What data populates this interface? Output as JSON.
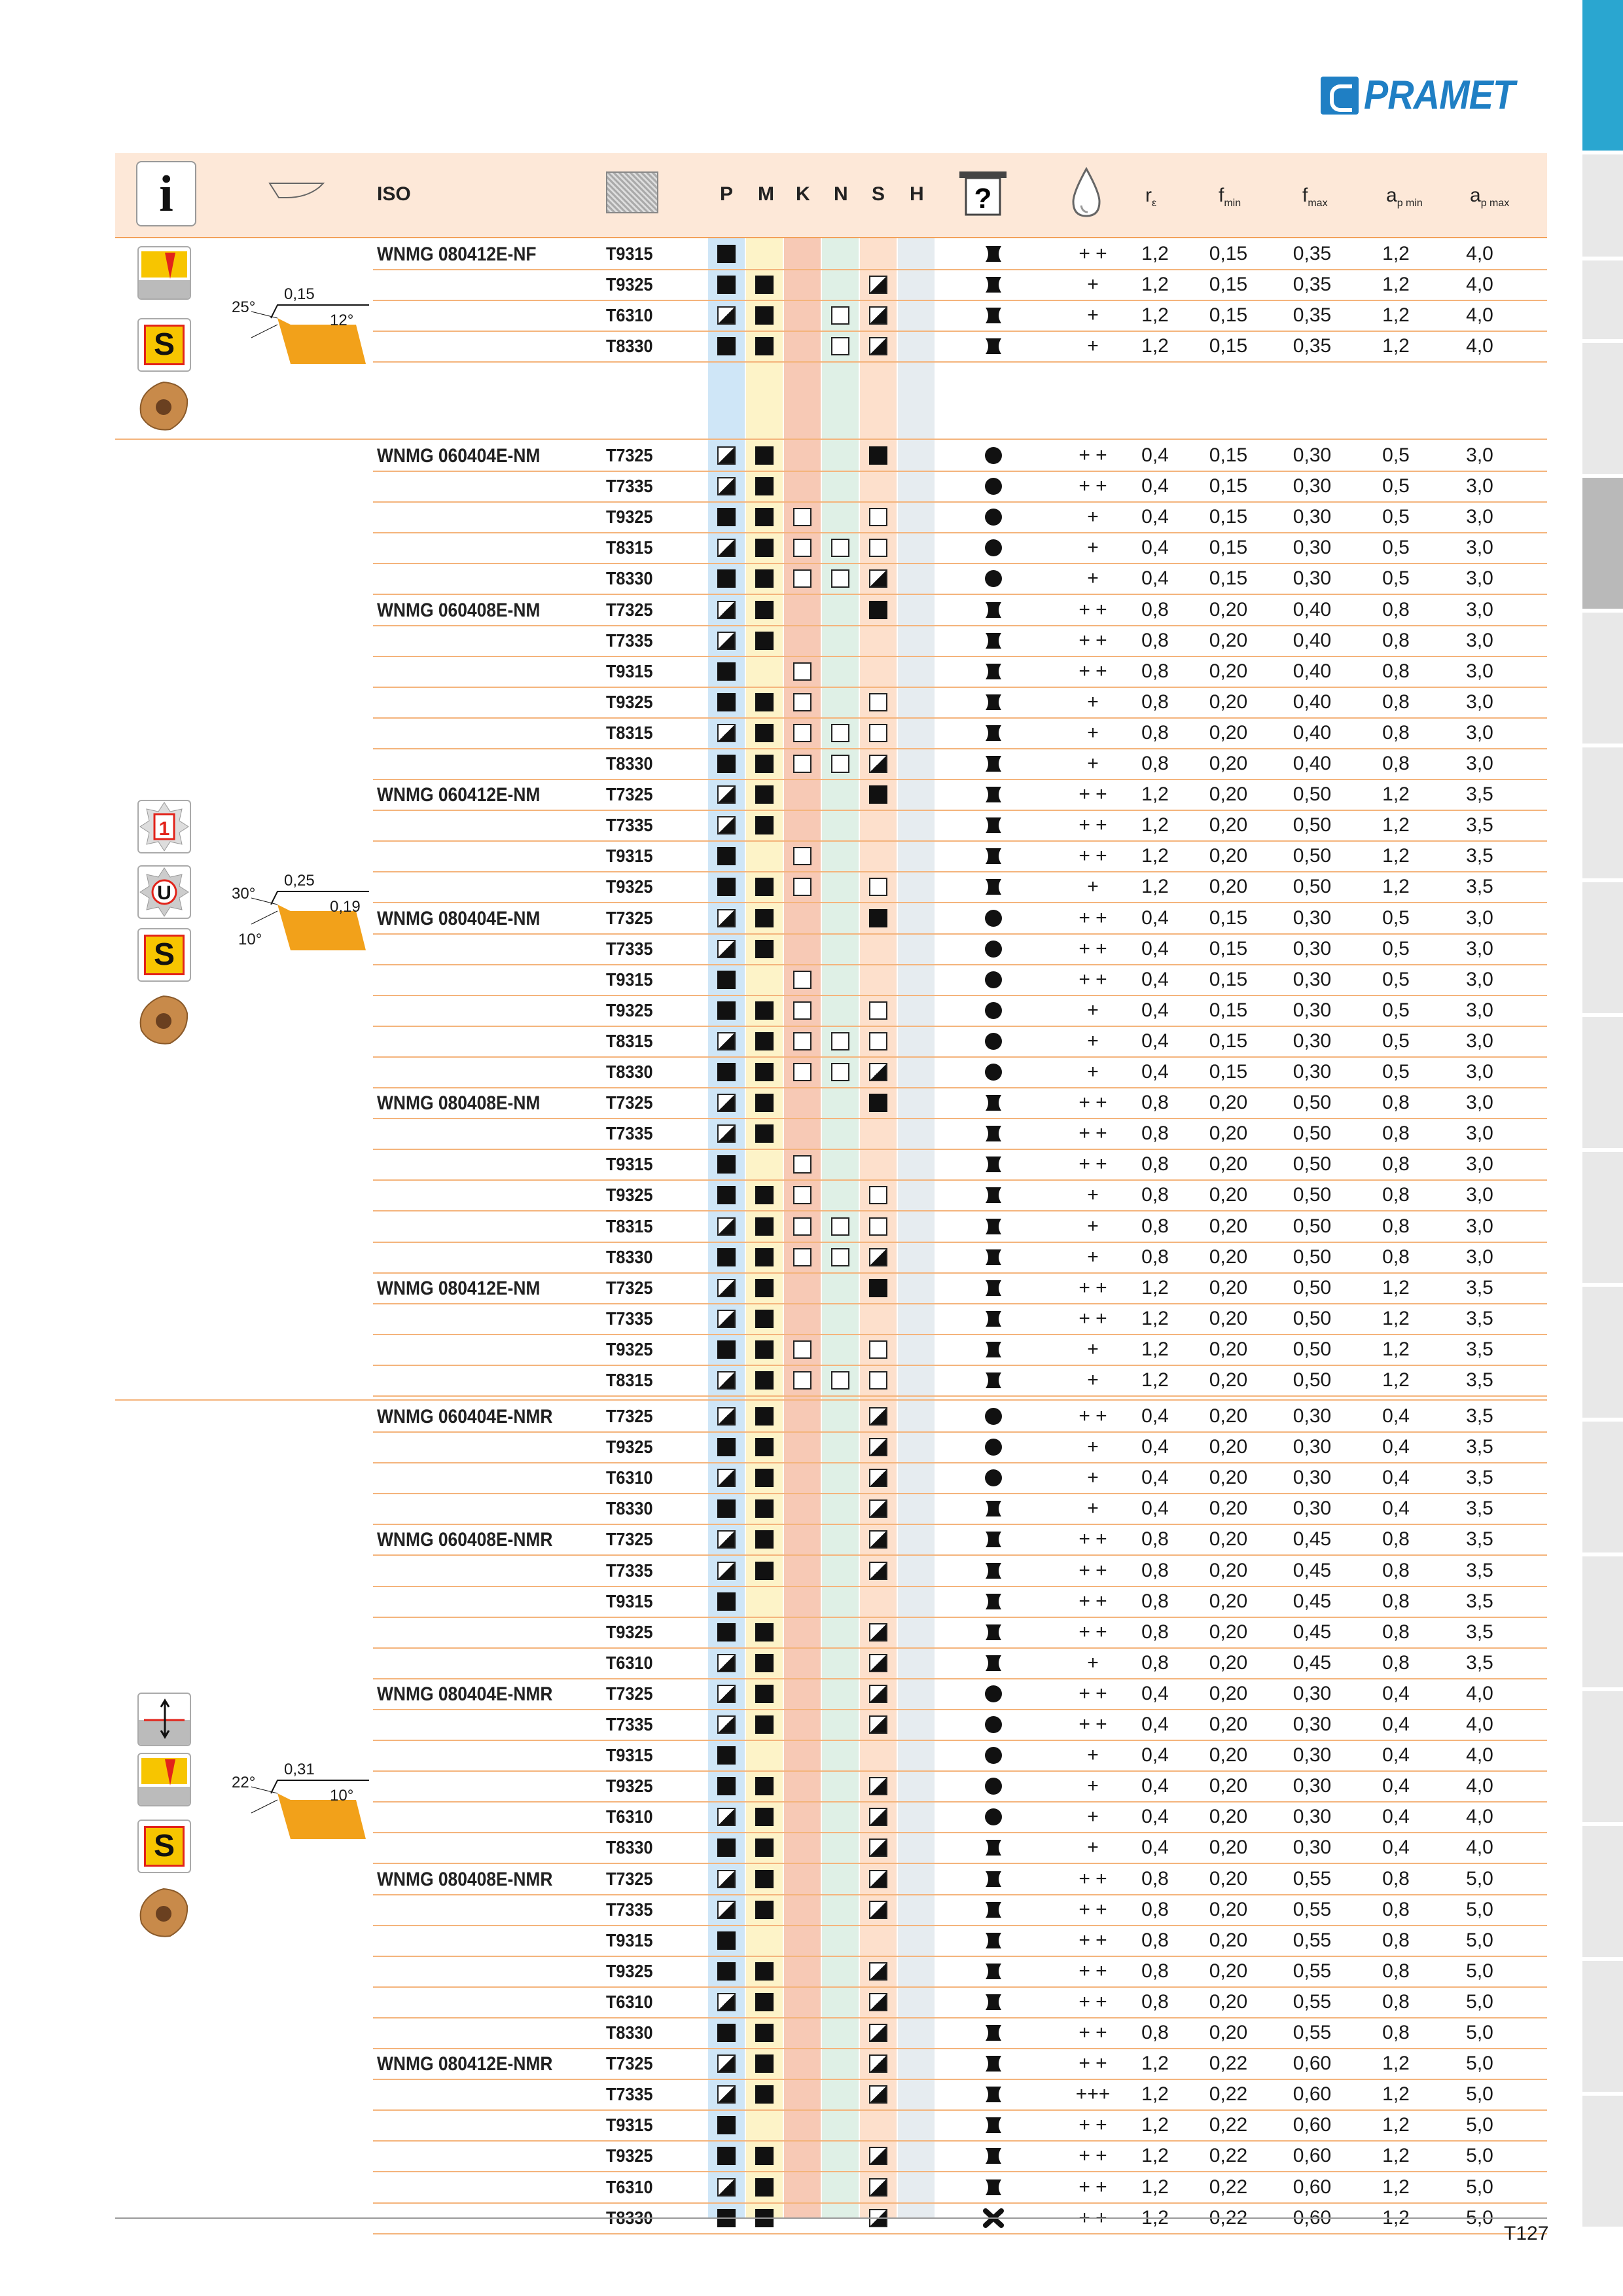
{
  "brand": {
    "name": "PRAMET"
  },
  "header": {
    "iso": "ISO",
    "materials": [
      "P",
      "M",
      "K",
      "N",
      "S",
      "H"
    ],
    "params": [
      "r",
      "f",
      "f",
      "a",
      "a"
    ],
    "params_sub": [
      "ε",
      "min",
      "max",
      "p min",
      "p max"
    ],
    "info_label": "i"
  },
  "colors": {
    "P": "#cfe6f7",
    "M": "#fdf3c8",
    "K": "#f7c9b5",
    "N": "#dff0e6",
    "S": "#fde0cc",
    "H": "#e6ecf0",
    "header_bg": "#fde8d8",
    "rule": "#f4b47c",
    "brand": "#1f7fc4"
  },
  "sections": [
    {
      "geometry_labels": [
        "25°",
        "0,15",
        "12°"
      ],
      "badges": [
        "wear-icon",
        "S"
      ]
    },
    {
      "geometry_labels": [
        "30°",
        "0,25",
        "0,19",
        "10°"
      ],
      "badges": [
        "1",
        "U",
        "S"
      ]
    },
    {
      "geometry_labels": [
        "22°",
        "0,31",
        "10°"
      ],
      "badges": [
        "depth-icon",
        "wear-icon",
        "S"
      ]
    }
  ],
  "groups": [
    {
      "iso": "WNMG 080412E-NF",
      "rows": [
        [
          "T9315",
          "f",
          "",
          "",
          "",
          "",
          "",
          "b",
          "+ +",
          "1,2",
          "0,15",
          "0,35",
          "1,2",
          "4,0"
        ],
        [
          "T9325",
          "f",
          "f",
          "",
          "",
          "h",
          "",
          "b",
          "+",
          "1,2",
          "0,15",
          "0,35",
          "1,2",
          "4,0"
        ],
        [
          "T6310",
          "h",
          "f",
          "",
          "e",
          "h",
          "",
          "b",
          "+",
          "1,2",
          "0,15",
          "0,35",
          "1,2",
          "4,0"
        ],
        [
          "T8330",
          "f",
          "f",
          "",
          "e",
          "h",
          "",
          "b",
          "+",
          "1,2",
          "0,15",
          "0,35",
          "1,2",
          "4,0"
        ]
      ]
    },
    {
      "iso": "WNMG 060404E-NM",
      "rows": [
        [
          "T7325",
          "h",
          "f",
          "",
          "",
          "f",
          "",
          "c",
          "+ +",
          "0,4",
          "0,15",
          "0,30",
          "0,5",
          "3,0"
        ],
        [
          "T7335",
          "h",
          "f",
          "",
          "",
          "",
          "",
          "c",
          "+ +",
          "0,4",
          "0,15",
          "0,30",
          "0,5",
          "3,0"
        ],
        [
          "T9325",
          "f",
          "f",
          "e",
          "",
          "e",
          "",
          "c",
          "+",
          "0,4",
          "0,15",
          "0,30",
          "0,5",
          "3,0"
        ],
        [
          "T8315",
          "h",
          "f",
          "e",
          "e",
          "e",
          "",
          "c",
          "+",
          "0,4",
          "0,15",
          "0,30",
          "0,5",
          "3,0"
        ],
        [
          "T8330",
          "f",
          "f",
          "e",
          "e",
          "h",
          "",
          "c",
          "+",
          "0,4",
          "0,15",
          "0,30",
          "0,5",
          "3,0"
        ]
      ]
    },
    {
      "iso": "WNMG 060408E-NM",
      "rows": [
        [
          "T7325",
          "h",
          "f",
          "",
          "",
          "f",
          "",
          "b",
          "+ +",
          "0,8",
          "0,20",
          "0,40",
          "0,8",
          "3,0"
        ],
        [
          "T7335",
          "h",
          "f",
          "",
          "",
          "",
          "",
          "b",
          "+ +",
          "0,8",
          "0,20",
          "0,40",
          "0,8",
          "3,0"
        ],
        [
          "T9315",
          "f",
          "",
          "e",
          "",
          "",
          "",
          "b",
          "+ +",
          "0,8",
          "0,20",
          "0,40",
          "0,8",
          "3,0"
        ],
        [
          "T9325",
          "f",
          "f",
          "e",
          "",
          "e",
          "",
          "b",
          "+",
          "0,8",
          "0,20",
          "0,40",
          "0,8",
          "3,0"
        ],
        [
          "T8315",
          "h",
          "f",
          "e",
          "e",
          "e",
          "",
          "b",
          "+",
          "0,8",
          "0,20",
          "0,40",
          "0,8",
          "3,0"
        ],
        [
          "T8330",
          "f",
          "f",
          "e",
          "e",
          "h",
          "",
          "b",
          "+",
          "0,8",
          "0,20",
          "0,40",
          "0,8",
          "3,0"
        ]
      ]
    },
    {
      "iso": "WNMG 060412E-NM",
      "rows": [
        [
          "T7325",
          "h",
          "f",
          "",
          "",
          "f",
          "",
          "b",
          "+ +",
          "1,2",
          "0,20",
          "0,50",
          "1,2",
          "3,5"
        ],
        [
          "T7335",
          "h",
          "f",
          "",
          "",
          "",
          "",
          "b",
          "+ +",
          "1,2",
          "0,20",
          "0,50",
          "1,2",
          "3,5"
        ],
        [
          "T9315",
          "f",
          "",
          "e",
          "",
          "",
          "",
          "b",
          "+ +",
          "1,2",
          "0,20",
          "0,50",
          "1,2",
          "3,5"
        ],
        [
          "T9325",
          "f",
          "f",
          "e",
          "",
          "e",
          "",
          "b",
          "+",
          "1,2",
          "0,20",
          "0,50",
          "1,2",
          "3,5"
        ]
      ]
    },
    {
      "iso": "WNMG 080404E-NM",
      "rows": [
        [
          "T7325",
          "h",
          "f",
          "",
          "",
          "f",
          "",
          "c",
          "+ +",
          "0,4",
          "0,15",
          "0,30",
          "0,5",
          "3,0"
        ],
        [
          "T7335",
          "h",
          "f",
          "",
          "",
          "",
          "",
          "c",
          "+ +",
          "0,4",
          "0,15",
          "0,30",
          "0,5",
          "3,0"
        ],
        [
          "T9315",
          "f",
          "",
          "e",
          "",
          "",
          "",
          "c",
          "+ +",
          "0,4",
          "0,15",
          "0,30",
          "0,5",
          "3,0"
        ],
        [
          "T9325",
          "f",
          "f",
          "e",
          "",
          "e",
          "",
          "c",
          "+",
          "0,4",
          "0,15",
          "0,30",
          "0,5",
          "3,0"
        ],
        [
          "T8315",
          "h",
          "f",
          "e",
          "e",
          "e",
          "",
          "c",
          "+",
          "0,4",
          "0,15",
          "0,30",
          "0,5",
          "3,0"
        ],
        [
          "T8330",
          "f",
          "f",
          "e",
          "e",
          "h",
          "",
          "c",
          "+",
          "0,4",
          "0,15",
          "0,30",
          "0,5",
          "3,0"
        ]
      ]
    },
    {
      "iso": "WNMG 080408E-NM",
      "rows": [
        [
          "T7325",
          "h",
          "f",
          "",
          "",
          "f",
          "",
          "b",
          "+ +",
          "0,8",
          "0,20",
          "0,50",
          "0,8",
          "3,0"
        ],
        [
          "T7335",
          "h",
          "f",
          "",
          "",
          "",
          "",
          "b",
          "+ +",
          "0,8",
          "0,20",
          "0,50",
          "0,8",
          "3,0"
        ],
        [
          "T9315",
          "f",
          "",
          "e",
          "",
          "",
          "",
          "b",
          "+ +",
          "0,8",
          "0,20",
          "0,50",
          "0,8",
          "3,0"
        ],
        [
          "T9325",
          "f",
          "f",
          "e",
          "",
          "e",
          "",
          "b",
          "+",
          "0,8",
          "0,20",
          "0,50",
          "0,8",
          "3,0"
        ],
        [
          "T8315",
          "h",
          "f",
          "e",
          "e",
          "e",
          "",
          "b",
          "+",
          "0,8",
          "0,20",
          "0,50",
          "0,8",
          "3,0"
        ],
        [
          "T8330",
          "f",
          "f",
          "e",
          "e",
          "h",
          "",
          "b",
          "+",
          "0,8",
          "0,20",
          "0,50",
          "0,8",
          "3,0"
        ]
      ]
    },
    {
      "iso": "WNMG 080412E-NM",
      "rows": [
        [
          "T7325",
          "h",
          "f",
          "",
          "",
          "f",
          "",
          "b",
          "+ +",
          "1,2",
          "0,20",
          "0,50",
          "1,2",
          "3,5"
        ],
        [
          "T7335",
          "h",
          "f",
          "",
          "",
          "",
          "",
          "b",
          "+ +",
          "1,2",
          "0,20",
          "0,50",
          "1,2",
          "3,5"
        ],
        [
          "T9325",
          "f",
          "f",
          "e",
          "",
          "e",
          "",
          "b",
          "+",
          "1,2",
          "0,20",
          "0,50",
          "1,2",
          "3,5"
        ],
        [
          "T8315",
          "h",
          "f",
          "e",
          "e",
          "e",
          "",
          "b",
          "+",
          "1,2",
          "0,20",
          "0,50",
          "1,2",
          "3,5"
        ]
      ]
    },
    {
      "iso": "WNMG 060404E-NMR",
      "rows": [
        [
          "T7325",
          "h",
          "f",
          "",
          "",
          "h",
          "",
          "c",
          "+ +",
          "0,4",
          "0,20",
          "0,30",
          "0,4",
          "3,5"
        ],
        [
          "T9325",
          "f",
          "f",
          "",
          "",
          "h",
          "",
          "c",
          "+",
          "0,4",
          "0,20",
          "0,30",
          "0,4",
          "3,5"
        ],
        [
          "T6310",
          "h",
          "f",
          "",
          "",
          "h",
          "",
          "c",
          "+",
          "0,4",
          "0,20",
          "0,30",
          "0,4",
          "3,5"
        ],
        [
          "T8330",
          "f",
          "f",
          "",
          "",
          "h",
          "",
          "b",
          "+",
          "0,4",
          "0,20",
          "0,30",
          "0,4",
          "3,5"
        ]
      ]
    },
    {
      "iso": "WNMG 060408E-NMR",
      "rows": [
        [
          "T7325",
          "h",
          "f",
          "",
          "",
          "h",
          "",
          "b",
          "+ +",
          "0,8",
          "0,20",
          "0,45",
          "0,8",
          "3,5"
        ],
        [
          "T7335",
          "h",
          "f",
          "",
          "",
          "h",
          "",
          "b",
          "+ +",
          "0,8",
          "0,20",
          "0,45",
          "0,8",
          "3,5"
        ],
        [
          "T9315",
          "f",
          "",
          "",
          "",
          "",
          "",
          "b",
          "+ +",
          "0,8",
          "0,20",
          "0,45",
          "0,8",
          "3,5"
        ],
        [
          "T9325",
          "f",
          "f",
          "",
          "",
          "h",
          "",
          "b",
          "+ +",
          "0,8",
          "0,20",
          "0,45",
          "0,8",
          "3,5"
        ],
        [
          "T6310",
          "h",
          "f",
          "",
          "",
          "h",
          "",
          "b",
          "+",
          "0,8",
          "0,20",
          "0,45",
          "0,8",
          "3,5"
        ]
      ]
    },
    {
      "iso": "WNMG 080404E-NMR",
      "rows": [
        [
          "T7325",
          "h",
          "f",
          "",
          "",
          "h",
          "",
          "c",
          "+ +",
          "0,4",
          "0,20",
          "0,30",
          "0,4",
          "4,0"
        ],
        [
          "T7335",
          "h",
          "f",
          "",
          "",
          "h",
          "",
          "c",
          "+ +",
          "0,4",
          "0,20",
          "0,30",
          "0,4",
          "4,0"
        ],
        [
          "T9315",
          "f",
          "",
          "",
          "",
          "",
          "",
          "c",
          "+",
          "0,4",
          "0,20",
          "0,30",
          "0,4",
          "4,0"
        ],
        [
          "T9325",
          "f",
          "f",
          "",
          "",
          "h",
          "",
          "c",
          "+",
          "0,4",
          "0,20",
          "0,30",
          "0,4",
          "4,0"
        ],
        [
          "T6310",
          "h",
          "f",
          "",
          "",
          "h",
          "",
          "c",
          "+",
          "0,4",
          "0,20",
          "0,30",
          "0,4",
          "4,0"
        ],
        [
          "T8330",
          "f",
          "f",
          "",
          "",
          "h",
          "",
          "b",
          "+",
          "0,4",
          "0,20",
          "0,30",
          "0,4",
          "4,0"
        ]
      ]
    },
    {
      "iso": "WNMG 080408E-NMR",
      "rows": [
        [
          "T7325",
          "h",
          "f",
          "",
          "",
          "h",
          "",
          "b",
          "+ +",
          "0,8",
          "0,20",
          "0,55",
          "0,8",
          "5,0"
        ],
        [
          "T7335",
          "h",
          "f",
          "",
          "",
          "h",
          "",
          "b",
          "+ +",
          "0,8",
          "0,20",
          "0,55",
          "0,8",
          "5,0"
        ],
        [
          "T9315",
          "f",
          "",
          "",
          "",
          "",
          "",
          "b",
          "+ +",
          "0,8",
          "0,20",
          "0,55",
          "0,8",
          "5,0"
        ],
        [
          "T9325",
          "f",
          "f",
          "",
          "",
          "h",
          "",
          "b",
          "+ +",
          "0,8",
          "0,20",
          "0,55",
          "0,8",
          "5,0"
        ],
        [
          "T6310",
          "h",
          "f",
          "",
          "",
          "h",
          "",
          "b",
          "+ +",
          "0,8",
          "0,20",
          "0,55",
          "0,8",
          "5,0"
        ],
        [
          "T8330",
          "f",
          "f",
          "",
          "",
          "h",
          "",
          "b",
          "+ +",
          "0,8",
          "0,20",
          "0,55",
          "0,8",
          "5,0"
        ]
      ]
    },
    {
      "iso": "WNMG 080412E-NMR",
      "rows": [
        [
          "T7325",
          "h",
          "f",
          "",
          "",
          "h",
          "",
          "b",
          "+ +",
          "1,2",
          "0,22",
          "0,60",
          "1,2",
          "5,0"
        ],
        [
          "T7335",
          "h",
          "f",
          "",
          "",
          "h",
          "",
          "b",
          "+++",
          "1,2",
          "0,22",
          "0,60",
          "1,2",
          "5,0"
        ],
        [
          "T9315",
          "f",
          "",
          "",
          "",
          "",
          "",
          "b",
          "+ +",
          "1,2",
          "0,22",
          "0,60",
          "1,2",
          "5,0"
        ],
        [
          "T9325",
          "f",
          "f",
          "",
          "",
          "h",
          "",
          "b",
          "+ +",
          "1,2",
          "0,22",
          "0,60",
          "1,2",
          "5,0"
        ],
        [
          "T6310",
          "h",
          "f",
          "",
          "",
          "h",
          "",
          "b",
          "+ +",
          "1,2",
          "0,22",
          "0,60",
          "1,2",
          "5,0"
        ],
        [
          "T8330",
          "f",
          "f",
          "",
          "",
          "h",
          "",
          "x",
          "+ +",
          "1,2",
          "0,22",
          "0,60",
          "1,2",
          "5,0"
        ]
      ]
    }
  ],
  "page_number": "T127"
}
